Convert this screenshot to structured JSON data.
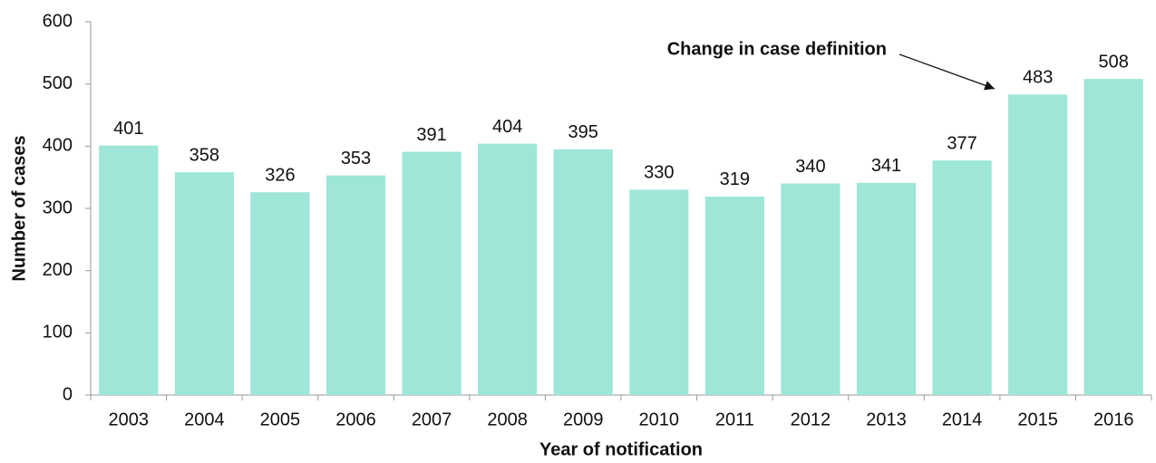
{
  "chart_data": {
    "type": "bar",
    "annotation": "Change in case definition",
    "xlabel": "Year of notification",
    "ylabel": "Number of cases",
    "categories": [
      "2003",
      "2004",
      "2005",
      "2006",
      "2007",
      "2008",
      "2009",
      "2010",
      "2011",
      "2012",
      "2013",
      "2014",
      "2015",
      "2016"
    ],
    "values": [
      401,
      358,
      326,
      353,
      391,
      404,
      395,
      330,
      319,
      340,
      341,
      377,
      483,
      508
    ],
    "color": "#9ee6d8",
    "ylim": [
      0,
      600
    ],
    "yticks": [
      0,
      100,
      200,
      300,
      400,
      500,
      600
    ],
    "grid": false
  }
}
